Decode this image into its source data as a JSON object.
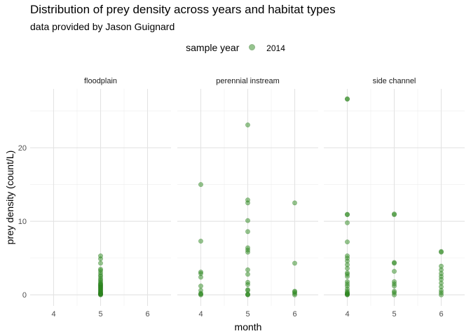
{
  "chart_data": {
    "type": "scatter",
    "title": "Distribution of prey density across years and habitat types",
    "subtitle": "data provided by Jason Guignard",
    "xlabel": "month",
    "ylabel": "prey density (count/L)",
    "legend": {
      "title": "sample year",
      "entries": [
        "2014"
      ],
      "position": "top"
    },
    "color": "#2e8b20",
    "x_ticks": [
      "4",
      "5",
      "6"
    ],
    "y_ticks": [
      "0",
      "10",
      "20"
    ],
    "xlim": [
      3.5,
      6.5
    ],
    "ylim": [
      -1.5,
      28
    ],
    "grid": true,
    "panels": [
      {
        "name": "floodplain",
        "points": [
          [
            5,
            0.0
          ],
          [
            5,
            0.05
          ],
          [
            5,
            0.1
          ],
          [
            5,
            0.15
          ],
          [
            5,
            0.2
          ],
          [
            5,
            0.3
          ],
          [
            5,
            0.4
          ],
          [
            5,
            0.5
          ],
          [
            5,
            0.6
          ],
          [
            5,
            0.7
          ],
          [
            5,
            0.8
          ],
          [
            5,
            0.9
          ],
          [
            5,
            1.0
          ],
          [
            5,
            1.1
          ],
          [
            5,
            1.2
          ],
          [
            5,
            1.3
          ],
          [
            5,
            1.4
          ],
          [
            5,
            1.5
          ],
          [
            5,
            1.6
          ],
          [
            5,
            1.8
          ],
          [
            5,
            2.0
          ],
          [
            5,
            2.2
          ],
          [
            5,
            2.5
          ],
          [
            5,
            2.7
          ],
          [
            5,
            3.0
          ],
          [
            5,
            3.3
          ],
          [
            5,
            3.5
          ],
          [
            5,
            4.3
          ],
          [
            5,
            4.9
          ],
          [
            5,
            5.3
          ]
        ]
      },
      {
        "name": "perennial instream",
        "points": [
          [
            4,
            0.0
          ],
          [
            4,
            0.1
          ],
          [
            4,
            0.2
          ],
          [
            4,
            0.6
          ],
          [
            4,
            1.2
          ],
          [
            4,
            2.4
          ],
          [
            4,
            2.9
          ],
          [
            4,
            3.1
          ],
          [
            4,
            7.3
          ],
          [
            4,
            15.0
          ],
          [
            5,
            0.0
          ],
          [
            5,
            0.05
          ],
          [
            5,
            0.1
          ],
          [
            5,
            0.6
          ],
          [
            5,
            0.7
          ],
          [
            5,
            1.4
          ],
          [
            5,
            1.7
          ],
          [
            5,
            2.8
          ],
          [
            5,
            3.4
          ],
          [
            5,
            5.8
          ],
          [
            5,
            6.1
          ],
          [
            5,
            6.4
          ],
          [
            5,
            8.6
          ],
          [
            5,
            10.1
          ],
          [
            5,
            12.5
          ],
          [
            5,
            12.9
          ],
          [
            5,
            23.1
          ],
          [
            6,
            0.0
          ],
          [
            6,
            0.2
          ],
          [
            6,
            0.4
          ],
          [
            6,
            0.5
          ],
          [
            6,
            4.3
          ],
          [
            6,
            12.5
          ]
        ]
      },
      {
        "name": "side channel",
        "points": [
          [
            4,
            0.0
          ],
          [
            4,
            0.05
          ],
          [
            4,
            0.1
          ],
          [
            4,
            0.2
          ],
          [
            4,
            0.3
          ],
          [
            4,
            0.5
          ],
          [
            4,
            0.8
          ],
          [
            4,
            1.2
          ],
          [
            4,
            1.5
          ],
          [
            4,
            1.8
          ],
          [
            4,
            2.5
          ],
          [
            4,
            2.8
          ],
          [
            4,
            3.0
          ],
          [
            4,
            3.6
          ],
          [
            4,
            4.1
          ],
          [
            4,
            4.6
          ],
          [
            4,
            5.0
          ],
          [
            4,
            5.3
          ],
          [
            4,
            7.2
          ],
          [
            4,
            9.8
          ],
          [
            4,
            10.9
          ],
          [
            4,
            10.95
          ],
          [
            4,
            26.6
          ],
          [
            4,
            26.65
          ],
          [
            5,
            0.0
          ],
          [
            5,
            0.3
          ],
          [
            5,
            0.5
          ],
          [
            5,
            1.2
          ],
          [
            5,
            1.5
          ],
          [
            5,
            1.8
          ],
          [
            5,
            3.2
          ],
          [
            5,
            4.3
          ],
          [
            5,
            4.4
          ],
          [
            5,
            10.9
          ],
          [
            5,
            11.0
          ],
          [
            6,
            0.0
          ],
          [
            6,
            0.3
          ],
          [
            6,
            0.6
          ],
          [
            6,
            1.1
          ],
          [
            6,
            1.6
          ],
          [
            6,
            2.1
          ],
          [
            6,
            2.5
          ],
          [
            6,
            2.9
          ],
          [
            6,
            3.4
          ],
          [
            6,
            3.9
          ],
          [
            6,
            5.8
          ],
          [
            6,
            5.9
          ]
        ]
      }
    ]
  }
}
